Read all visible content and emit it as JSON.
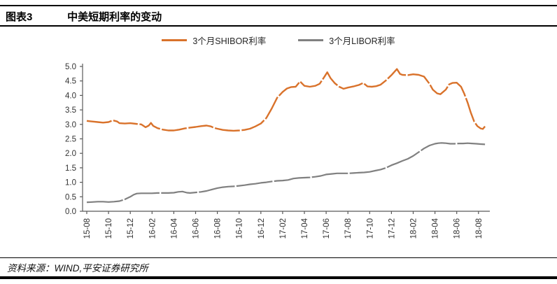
{
  "header": {
    "figure_label": "图表3",
    "title": "中美短期利率的变动"
  },
  "footer": {
    "source_note": "资料来源：WIND,平安证券研究所"
  },
  "chart_data": {
    "type": "line",
    "title": "中美短期利率的变动",
    "xlabel": "",
    "ylabel": "",
    "ylim": [
      0.0,
      5.0
    ],
    "y_tick_step": 0.5,
    "y_tick_labels": [
      "0.0",
      "0.5",
      "1.0",
      "1.5",
      "2.0",
      "2.5",
      "3.0",
      "3.5",
      "4.0",
      "4.5",
      "5.0"
    ],
    "x_tick_labels": [
      "15-08",
      "15-10",
      "15-12",
      "16-02",
      "16-04",
      "16-06",
      "16-08",
      "16-10",
      "16-12",
      "17-02",
      "17-04",
      "17-06",
      "17-08",
      "17-10",
      "17-12",
      "18-02",
      "18-04",
      "18-06",
      "18-08"
    ],
    "x_tick_month_index": [
      0,
      2,
      4,
      6,
      8,
      10,
      12,
      14,
      16,
      18,
      20,
      22,
      24,
      26,
      28,
      30,
      32,
      34,
      36
    ],
    "x_unit": "month index from 2015-08 (labels YY-MM)",
    "grid": false,
    "legend_position": "top-center",
    "axis_color": "#595959",
    "tick_label_color": "#333333",
    "series": [
      {
        "name": "3个月SHIBOR利率",
        "color": "#D9722B",
        "stroke_width": 2.4,
        "dash": "36 2.6",
        "points": [
          [
            0,
            3.12
          ],
          [
            0.5,
            3.1
          ],
          [
            1,
            3.08
          ],
          [
            1.5,
            3.06
          ],
          [
            2,
            3.08
          ],
          [
            2.4,
            3.14
          ],
          [
            2.8,
            3.1
          ],
          [
            3,
            3.04
          ],
          [
            3.5,
            3.03
          ],
          [
            4,
            3.04
          ],
          [
            4.5,
            3.02
          ],
          [
            5,
            3.0
          ],
          [
            5.4,
            2.9
          ],
          [
            5.7,
            2.96
          ],
          [
            5.9,
            3.05
          ],
          [
            6.1,
            2.95
          ],
          [
            6.5,
            2.87
          ],
          [
            7,
            2.82
          ],
          [
            7.5,
            2.79
          ],
          [
            8,
            2.79
          ],
          [
            8.5,
            2.82
          ],
          [
            9,
            2.86
          ],
          [
            9.5,
            2.89
          ],
          [
            10,
            2.91
          ],
          [
            10.5,
            2.94
          ],
          [
            11,
            2.96
          ],
          [
            11.4,
            2.93
          ],
          [
            11.7,
            2.88
          ],
          [
            12,
            2.85
          ],
          [
            12.5,
            2.81
          ],
          [
            13,
            2.79
          ],
          [
            13.5,
            2.78
          ],
          [
            14,
            2.79
          ],
          [
            14.5,
            2.81
          ],
          [
            15,
            2.85
          ],
          [
            15.5,
            2.93
          ],
          [
            16,
            3.03
          ],
          [
            16.5,
            3.22
          ],
          [
            17,
            3.55
          ],
          [
            17.5,
            3.92
          ],
          [
            18,
            4.12
          ],
          [
            18.4,
            4.24
          ],
          [
            18.8,
            4.29
          ],
          [
            19.2,
            4.3
          ],
          [
            19.6,
            4.48
          ],
          [
            20,
            4.33
          ],
          [
            20.5,
            4.3
          ],
          [
            21,
            4.33
          ],
          [
            21.4,
            4.4
          ],
          [
            21.8,
            4.62
          ],
          [
            22.1,
            4.8
          ],
          [
            22.4,
            4.6
          ],
          [
            22.8,
            4.42
          ],
          [
            23.2,
            4.3
          ],
          [
            23.6,
            4.23
          ],
          [
            24,
            4.27
          ],
          [
            24.5,
            4.31
          ],
          [
            25,
            4.36
          ],
          [
            25.4,
            4.43
          ],
          [
            25.8,
            4.31
          ],
          [
            26.2,
            4.3
          ],
          [
            26.6,
            4.32
          ],
          [
            27,
            4.37
          ],
          [
            27.5,
            4.52
          ],
          [
            28,
            4.7
          ],
          [
            28.5,
            4.91
          ],
          [
            28.8,
            4.74
          ],
          [
            29,
            4.71
          ],
          [
            29.5,
            4.7
          ],
          [
            30,
            4.73
          ],
          [
            30.5,
            4.71
          ],
          [
            31,
            4.65
          ],
          [
            31.5,
            4.4
          ],
          [
            31.8,
            4.2
          ],
          [
            32.2,
            4.07
          ],
          [
            32.5,
            4.04
          ],
          [
            33,
            4.2
          ],
          [
            33.3,
            4.38
          ],
          [
            33.6,
            4.43
          ],
          [
            34,
            4.44
          ],
          [
            34.4,
            4.3
          ],
          [
            34.7,
            4.05
          ],
          [
            35,
            3.75
          ],
          [
            35.3,
            3.4
          ],
          [
            35.6,
            3.1
          ],
          [
            35.9,
            2.94
          ],
          [
            36.2,
            2.86
          ],
          [
            36.4,
            2.84
          ],
          [
            36.6,
            2.93
          ]
        ]
      },
      {
        "name": "3个月LIBOR利率",
        "color": "#808080",
        "stroke_width": 2.2,
        "dash": "52 2.4",
        "points": [
          [
            0,
            0.31
          ],
          [
            0.5,
            0.32
          ],
          [
            1,
            0.33
          ],
          [
            1.5,
            0.33
          ],
          [
            2,
            0.32
          ],
          [
            2.5,
            0.33
          ],
          [
            3,
            0.35
          ],
          [
            3.5,
            0.41
          ],
          [
            4,
            0.5
          ],
          [
            4.3,
            0.57
          ],
          [
            4.6,
            0.61
          ],
          [
            5,
            0.62
          ],
          [
            5.5,
            0.62
          ],
          [
            6,
            0.62
          ],
          [
            6.5,
            0.63
          ],
          [
            7,
            0.63
          ],
          [
            7.5,
            0.63
          ],
          [
            8,
            0.64
          ],
          [
            8.4,
            0.67
          ],
          [
            8.8,
            0.68
          ],
          [
            9.2,
            0.64
          ],
          [
            9.5,
            0.63
          ],
          [
            10,
            0.65
          ],
          [
            10.5,
            0.67
          ],
          [
            11,
            0.7
          ],
          [
            11.5,
            0.75
          ],
          [
            12,
            0.8
          ],
          [
            12.5,
            0.83
          ],
          [
            13,
            0.85
          ],
          [
            13.5,
            0.86
          ],
          [
            14,
            0.88
          ],
          [
            14.5,
            0.9
          ],
          [
            15,
            0.93
          ],
          [
            15.5,
            0.95
          ],
          [
            16,
            0.98
          ],
          [
            16.5,
            1.0
          ],
          [
            17,
            1.03
          ],
          [
            17.5,
            1.05
          ],
          [
            18,
            1.06
          ],
          [
            18.5,
            1.08
          ],
          [
            19,
            1.13
          ],
          [
            19.5,
            1.15
          ],
          [
            20,
            1.16
          ],
          [
            20.5,
            1.17
          ],
          [
            21,
            1.19
          ],
          [
            21.5,
            1.22
          ],
          [
            22,
            1.27
          ],
          [
            22.5,
            1.29
          ],
          [
            23,
            1.31
          ],
          [
            23.5,
            1.31
          ],
          [
            24,
            1.31
          ],
          [
            24.5,
            1.32
          ],
          [
            25,
            1.33
          ],
          [
            25.5,
            1.34
          ],
          [
            26,
            1.36
          ],
          [
            26.5,
            1.4
          ],
          [
            27,
            1.44
          ],
          [
            27.5,
            1.5
          ],
          [
            28,
            1.59
          ],
          [
            28.5,
            1.66
          ],
          [
            29,
            1.74
          ],
          [
            29.5,
            1.81
          ],
          [
            30,
            1.91
          ],
          [
            30.5,
            2.04
          ],
          [
            31,
            2.17
          ],
          [
            31.5,
            2.27
          ],
          [
            32,
            2.33
          ],
          [
            32.3,
            2.35
          ],
          [
            32.6,
            2.36
          ],
          [
            33,
            2.35
          ],
          [
            33.4,
            2.33
          ],
          [
            33.8,
            2.33
          ],
          [
            34.2,
            2.34
          ],
          [
            34.6,
            2.34
          ],
          [
            35,
            2.35
          ],
          [
            35.4,
            2.34
          ],
          [
            35.8,
            2.33
          ],
          [
            36.2,
            2.32
          ],
          [
            36.6,
            2.31
          ]
        ]
      }
    ]
  }
}
